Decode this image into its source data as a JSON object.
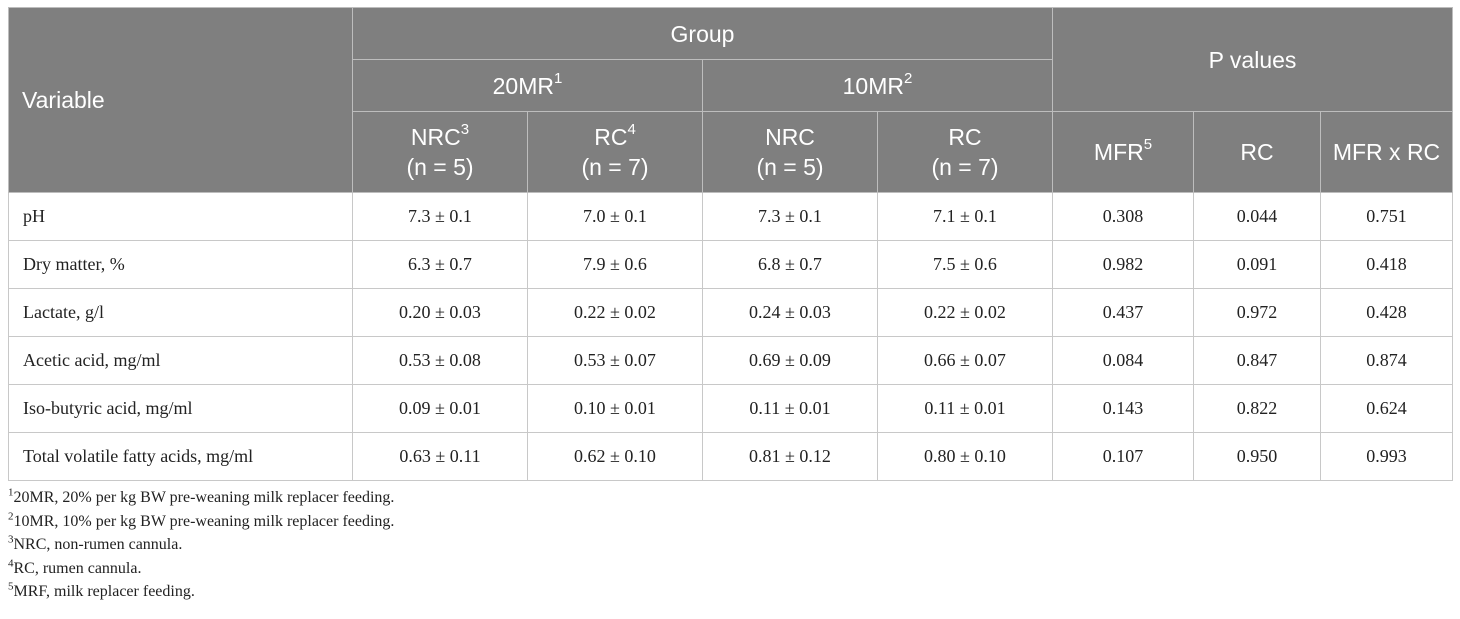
{
  "header": {
    "variable": "Variable",
    "group": "Group",
    "p_values": "P values",
    "mr20": "20MR",
    "mr20_sup": "1",
    "mr10": "10MR",
    "mr10_sup": "2",
    "cols": [
      {
        "name": "NRC",
        "sup": "3",
        "n": "(n = 5)"
      },
      {
        "name": "RC",
        "sup": "4",
        "n": "(n = 7)"
      },
      {
        "name": "NRC",
        "sup": "",
        "n": "(n = 5)"
      },
      {
        "name": "RC",
        "sup": "",
        "n": "(n = 7)"
      }
    ],
    "mfr": "MFR",
    "mfr_sup": "5",
    "rc": "RC",
    "mfr_x_rc": "MFR x RC"
  },
  "rows": [
    {
      "label": "pH",
      "values": [
        "7.3 ± 0.1",
        "7.0 ± 0.1",
        "7.3 ± 0.1",
        "7.1 ± 0.1",
        "0.308",
        "0.044",
        "0.751"
      ]
    },
    {
      "label": "Dry matter, %",
      "values": [
        "6.3 ± 0.7",
        "7.9 ± 0.6",
        "6.8 ± 0.7",
        "7.5 ± 0.6",
        "0.982",
        "0.091",
        "0.418"
      ]
    },
    {
      "label": "Lactate, g/l",
      "values": [
        "0.20 ± 0.03",
        "0.22 ± 0.02",
        "0.24 ± 0.03",
        "0.22 ± 0.02",
        "0.437",
        "0.972",
        "0.428"
      ]
    },
    {
      "label": "Acetic acid, mg/ml",
      "values": [
        "0.53 ± 0.08",
        "0.53 ± 0.07",
        "0.69 ± 0.09",
        "0.66 ± 0.07",
        "0.084",
        "0.847",
        "0.874"
      ]
    },
    {
      "label": "Iso-butyric acid, mg/ml",
      "values": [
        "0.09 ± 0.01",
        "0.10 ± 0.01",
        "0.11 ± 0.01",
        "0.11 ± 0.01",
        "0.143",
        "0.822",
        "0.624"
      ]
    },
    {
      "label": "Total volatile fatty acids, mg/ml",
      "values": [
        "0.63 ± 0.11",
        "0.62 ± 0.10",
        "0.81 ± 0.12",
        "0.80 ± 0.10",
        "0.107",
        "0.950",
        "0.993"
      ]
    }
  ],
  "footnotes": [
    {
      "sup": "1",
      "text": "20MR, 20% per kg BW pre-weaning milk replacer feeding."
    },
    {
      "sup": "2",
      "text": "10MR, 10% per kg BW pre-weaning milk replacer feeding."
    },
    {
      "sup": "3",
      "text": "NRC, non-rumen cannula."
    },
    {
      "sup": "4",
      "text": "RC, rumen cannula."
    },
    {
      "sup": "5",
      "text": "MRF, milk replacer feeding."
    }
  ]
}
